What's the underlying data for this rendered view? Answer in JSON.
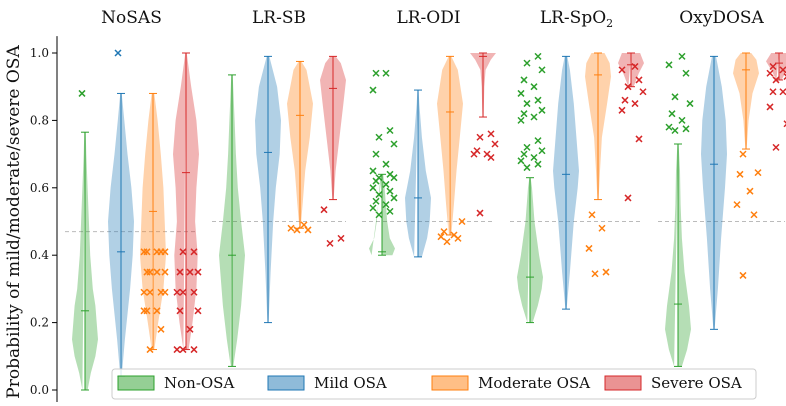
{
  "chart_data": {
    "type": "violin",
    "ylabel": "Probability of mild/moderate/severe OSA",
    "ylim": [
      0,
      1.05
    ],
    "yticks": [
      "0.0",
      "0.2",
      "0.4",
      "0.6",
      "0.8",
      "1.0"
    ],
    "yticks_values": [
      0,
      0.2,
      0.4,
      0.6,
      0.8,
      1.0
    ],
    "legend_placement": "bottom-center",
    "series": [
      {
        "name": "Non-OSA",
        "color": "#2ca02c"
      },
      {
        "name": "Mild OSA",
        "color": "#1f77b4"
      },
      {
        "name": "Moderate OSA",
        "color": "#ff7f0e"
      },
      {
        "name": "Severe OSA",
        "color": "#d62728"
      }
    ],
    "panels": [
      {
        "title": "NoSAS",
        "threshold": 0.47,
        "violins": [
          {
            "min": 0.0,
            "max": 0.765,
            "median": 0.235,
            "shape": [
              [
                0.0,
                0.2
              ],
              [
                0.05,
                0.45
              ],
              [
                0.1,
                0.8
              ],
              [
                0.15,
                1.0
              ],
              [
                0.2,
                0.9
              ],
              [
                0.25,
                0.8
              ],
              [
                0.3,
                0.6
              ],
              [
                0.4,
                0.4
              ],
              [
                0.5,
                0.3
              ],
              [
                0.6,
                0.2
              ],
              [
                0.7,
                0.1
              ],
              [
                0.765,
                0.05
              ]
            ],
            "outliers": [
              0.88
            ]
          },
          {
            "min": 0.04,
            "max": 0.88,
            "median": 0.41,
            "shape": [
              [
                0.04,
                0.05
              ],
              [
                0.15,
                0.3
              ],
              [
                0.3,
                0.7
              ],
              [
                0.4,
                0.9
              ],
              [
                0.5,
                1.0
              ],
              [
                0.6,
                0.8
              ],
              [
                0.7,
                0.5
              ],
              [
                0.8,
                0.25
              ],
              [
                0.88,
                0.05
              ]
            ],
            "outliers": [
              1.0
            ]
          },
          {
            "min": 0.12,
            "max": 0.88,
            "median": 0.53,
            "shape": [
              [
                0.12,
                0.1
              ],
              [
                0.2,
                0.4
              ],
              [
                0.3,
                0.8
              ],
              [
                0.4,
                1.0
              ],
              [
                0.5,
                0.9
              ],
              [
                0.6,
                0.8
              ],
              [
                0.7,
                0.6
              ],
              [
                0.8,
                0.35
              ],
              [
                0.88,
                0.1
              ]
            ],
            "outliers": [
              0.12,
              0.18,
              0.235,
              0.235,
              0.235,
              0.29,
              0.29,
              0.29,
              0.29,
              0.35,
              0.35,
              0.35,
              0.35,
              0.41,
              0.41,
              0.41,
              0.41,
              0.41
            ]
          },
          {
            "min": 0.12,
            "max": 1.0,
            "median": 0.645,
            "shape": [
              [
                0.12,
                0.2
              ],
              [
                0.2,
                0.5
              ],
              [
                0.3,
                0.8
              ],
              [
                0.4,
                0.9
              ],
              [
                0.5,
                0.7
              ],
              [
                0.6,
                0.8
              ],
              [
                0.7,
                1.0
              ],
              [
                0.8,
                0.8
              ],
              [
                0.9,
                0.4
              ],
              [
                1.0,
                0.05
              ]
            ],
            "outliers": [
              0.12,
              0.12,
              0.12,
              0.18,
              0.235,
              0.235,
              0.29,
              0.29,
              0.29,
              0.35,
              0.35,
              0.35,
              0.41,
              0.41
            ]
          }
        ]
      },
      {
        "title": "LR-SB",
        "threshold": 0.5,
        "violins": [
          {
            "min": 0.07,
            "max": 0.935,
            "median": 0.4,
            "shape": [
              [
                0.07,
                0.1
              ],
              [
                0.15,
                0.4
              ],
              [
                0.25,
                0.7
              ],
              [
                0.35,
                0.9
              ],
              [
                0.4,
                1.0
              ],
              [
                0.5,
                0.7
              ],
              [
                0.6,
                0.45
              ],
              [
                0.7,
                0.3
              ],
              [
                0.8,
                0.2
              ],
              [
                0.935,
                0.05
              ]
            ],
            "outliers": []
          },
          {
            "min": 0.2,
            "max": 0.99,
            "median": 0.705,
            "shape": [
              [
                0.2,
                0.05
              ],
              [
                0.35,
                0.2
              ],
              [
                0.5,
                0.4
              ],
              [
                0.6,
                0.6
              ],
              [
                0.7,
                0.9
              ],
              [
                0.8,
                1.0
              ],
              [
                0.9,
                0.7
              ],
              [
                0.99,
                0.1
              ]
            ],
            "outliers": []
          },
          {
            "min": 0.48,
            "max": 0.975,
            "median": 0.815,
            "shape": [
              [
                0.48,
                0.05
              ],
              [
                0.55,
                0.2
              ],
              [
                0.65,
                0.4
              ],
              [
                0.75,
                0.75
              ],
              [
                0.85,
                1.0
              ],
              [
                0.95,
                0.5
              ],
              [
                0.975,
                0.1
              ]
            ],
            "outliers": [
              0.475,
              0.475,
              0.48,
              0.49
            ]
          },
          {
            "min": 0.565,
            "max": 0.99,
            "median": 0.895,
            "shape": [
              [
                0.565,
                0.05
              ],
              [
                0.65,
                0.2
              ],
              [
                0.75,
                0.5
              ],
              [
                0.85,
                0.8
              ],
              [
                0.92,
                1.0
              ],
              [
                0.97,
                0.6
              ],
              [
                0.99,
                0.2
              ]
            ],
            "outliers": [
              0.435,
              0.45,
              0.535
            ]
          }
        ]
      },
      {
        "title": "LR-ODI",
        "threshold": 0.5,
        "violins": [
          {
            "min": 0.4,
            "max": 0.64,
            "median": 0.41,
            "shape": [
              [
                0.4,
                0.8
              ],
              [
                0.42,
                1.0
              ],
              [
                0.45,
                0.6
              ],
              [
                0.5,
                0.4
              ],
              [
                0.55,
                0.3
              ],
              [
                0.6,
                0.2
              ],
              [
                0.64,
                0.1
              ]
            ],
            "outliers": [
              0.52,
              0.53,
              0.54,
              0.55,
              0.56,
              0.57,
              0.58,
              0.59,
              0.6,
              0.61,
              0.62,
              0.63,
              0.63,
              0.64,
              0.65,
              0.67,
              0.7,
              0.73,
              0.75,
              0.77,
              0.89,
              0.94,
              0.94
            ]
          },
          {
            "min": 0.395,
            "max": 0.89,
            "median": 0.57,
            "shape": [
              [
                0.395,
                0.3
              ],
              [
                0.45,
                0.7
              ],
              [
                0.5,
                0.9
              ],
              [
                0.57,
                1.0
              ],
              [
                0.65,
                0.6
              ],
              [
                0.75,
                0.3
              ],
              [
                0.85,
                0.1
              ],
              [
                0.89,
                0.05
              ]
            ],
            "outliers": []
          },
          {
            "min": 0.46,
            "max": 0.99,
            "median": 0.825,
            "shape": [
              [
                0.46,
                0.1
              ],
              [
                0.55,
                0.3
              ],
              [
                0.65,
                0.5
              ],
              [
                0.75,
                0.75
              ],
              [
                0.85,
                1.0
              ],
              [
                0.95,
                0.6
              ],
              [
                0.99,
                0.1
              ]
            ],
            "outliers": [
              0.44,
              0.45,
              0.455,
              0.46,
              0.47,
              0.5
            ]
          },
          {
            "min": 0.81,
            "max": 1.0,
            "median": 0.99,
            "shape": [
              [
                0.81,
                0.05
              ],
              [
                0.9,
                0.1
              ],
              [
                0.95,
                0.2
              ],
              [
                0.98,
                0.6
              ],
              [
                1.0,
                1.0
              ]
            ],
            "outliers": [
              0.525,
              0.69,
              0.7,
              0.7,
              0.71,
              0.73,
              0.75,
              0.76
            ]
          }
        ]
      },
      {
        "title": "LR-SpO",
        "title_sub": "2",
        "threshold": 0.5,
        "violins": [
          {
            "min": 0.2,
            "max": 0.63,
            "median": 0.335,
            "shape": [
              [
                0.2,
                0.2
              ],
              [
                0.25,
                0.6
              ],
              [
                0.3,
                0.9
              ],
              [
                0.335,
                1.0
              ],
              [
                0.4,
                0.7
              ],
              [
                0.5,
                0.35
              ],
              [
                0.6,
                0.15
              ],
              [
                0.63,
                0.05
              ]
            ],
            "outliers": [
              0.66,
              0.67,
              0.68,
              0.69,
              0.7,
              0.71,
              0.72,
              0.74,
              0.8,
              0.81,
              0.82,
              0.83,
              0.85,
              0.86,
              0.88,
              0.9,
              0.92,
              0.95,
              0.97,
              0.99
            ]
          },
          {
            "min": 0.24,
            "max": 0.99,
            "median": 0.64,
            "shape": [
              [
                0.24,
                0.05
              ],
              [
                0.35,
                0.3
              ],
              [
                0.5,
                0.6
              ],
              [
                0.6,
                0.9
              ],
              [
                0.65,
                1.0
              ],
              [
                0.75,
                0.8
              ],
              [
                0.85,
                0.6
              ],
              [
                0.95,
                0.3
              ],
              [
                0.99,
                0.1
              ]
            ],
            "outliers": []
          },
          {
            "min": 0.565,
            "max": 1.0,
            "median": 0.935,
            "shape": [
              [
                0.565,
                0.05
              ],
              [
                0.65,
                0.15
              ],
              [
                0.75,
                0.3
              ],
              [
                0.85,
                0.7
              ],
              [
                0.93,
                1.0
              ],
              [
                0.97,
                0.9
              ],
              [
                1.0,
                0.5
              ]
            ],
            "outliers": [
              0.345,
              0.35,
              0.42,
              0.48,
              0.52
            ]
          },
          {
            "min": 0.9,
            "max": 1.0,
            "median": 0.965,
            "shape": [
              [
                0.9,
                0.2
              ],
              [
                0.94,
                0.6
              ],
              [
                0.97,
                1.0
              ],
              [
                1.0,
                0.7
              ]
            ],
            "outliers": [
              0.57,
              0.745,
              0.83,
              0.85,
              0.86,
              0.885,
              0.9,
              0.92,
              0.95,
              0.96
            ]
          }
        ]
      },
      {
        "title": "OxyDOSA",
        "threshold": 0.5,
        "violins": [
          {
            "min": 0.07,
            "max": 0.73,
            "median": 0.255,
            "shape": [
              [
                0.07,
                0.3
              ],
              [
                0.12,
                0.7
              ],
              [
                0.18,
                1.0
              ],
              [
                0.25,
                0.85
              ],
              [
                0.35,
                0.5
              ],
              [
                0.45,
                0.3
              ],
              [
                0.55,
                0.2
              ],
              [
                0.65,
                0.15
              ],
              [
                0.73,
                0.05
              ]
            ],
            "outliers": [
              0.77,
              0.775,
              0.78,
              0.8,
              0.82,
              0.85,
              0.87,
              0.94,
              0.965,
              0.99
            ]
          },
          {
            "min": 0.18,
            "max": 0.99,
            "median": 0.67,
            "shape": [
              [
                0.18,
                0.05
              ],
              [
                0.3,
                0.3
              ],
              [
                0.45,
                0.55
              ],
              [
                0.6,
                0.85
              ],
              [
                0.7,
                1.0
              ],
              [
                0.8,
                0.9
              ],
              [
                0.9,
                0.6
              ],
              [
                0.99,
                0.15
              ]
            ],
            "outliers": []
          },
          {
            "min": 0.715,
            "max": 1.0,
            "median": 0.95,
            "shape": [
              [
                0.715,
                0.05
              ],
              [
                0.8,
                0.2
              ],
              [
                0.88,
                0.5
              ],
              [
                0.94,
                1.0
              ],
              [
                0.98,
                0.8
              ],
              [
                1.0,
                0.4
              ]
            ],
            "outliers": [
              0.34,
              0.52,
              0.55,
              0.59,
              0.64,
              0.645,
              0.7
            ]
          },
          {
            "min": 0.92,
            "max": 1.0,
            "median": 0.97,
            "shape": [
              [
                0.92,
                0.2
              ],
              [
                0.95,
                0.6
              ],
              [
                0.975,
                1.0
              ],
              [
                1.0,
                0.6
              ]
            ],
            "outliers": [
              0.72,
              0.79,
              0.84,
              0.885,
              0.885,
              0.9,
              0.92,
              0.93,
              0.94,
              0.95,
              0.96
            ]
          }
        ]
      }
    ]
  }
}
